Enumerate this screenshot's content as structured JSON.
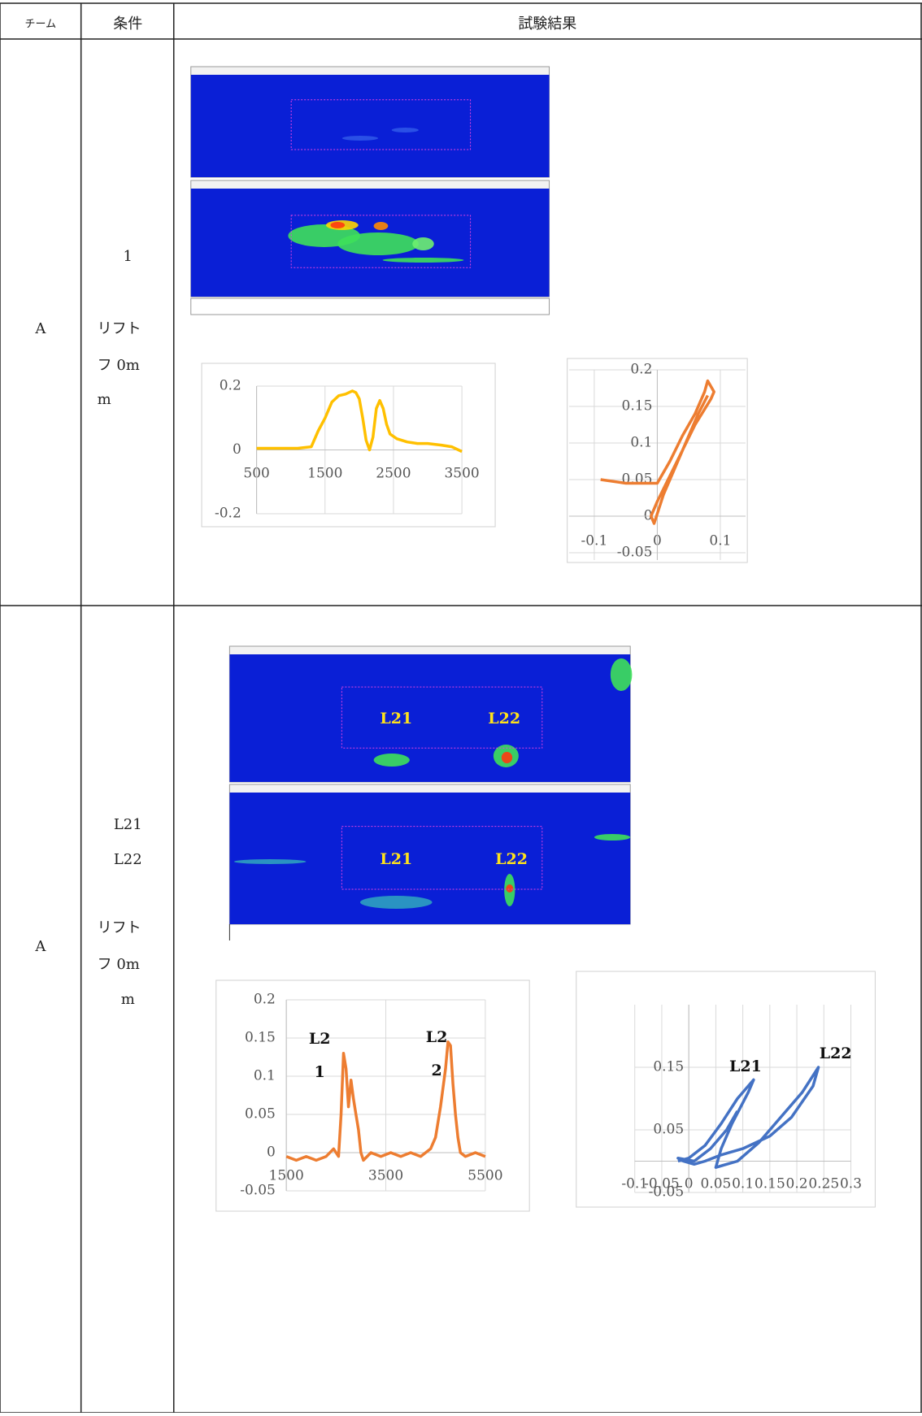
{
  "table": {
    "header": [
      "チーム",
      "条件",
      "試験結果"
    ],
    "rows": [
      {
        "team": "A",
        "condition": [
          "1",
          "リフト",
          "フ 0m",
          "m"
        ]
      },
      {
        "team": "A",
        "condition": [
          "L21",
          "L22",
          "リフト",
          "フ 0m",
          "m"
        ],
        "result": {
          "top_labels": [
            "L21",
            "L22"
          ],
          "bottom_labels": [
            "L21",
            "L22"
          ]
        }
      }
    ]
  },
  "chart_data": [
    {
      "type": "line",
      "color": "#ffc000",
      "x": [
        500,
        800,
        1100,
        1300,
        1400,
        1500,
        1600,
        1700,
        1800,
        1900,
        1950,
        2000,
        2050,
        2100,
        2150,
        2200,
        2250,
        2300,
        2350,
        2400,
        2450,
        2550,
        2700,
        2850,
        3000,
        3200,
        3350,
        3500
      ],
      "values": [
        0.005,
        0.005,
        0.005,
        0.01,
        0.06,
        0.1,
        0.15,
        0.17,
        0.175,
        0.185,
        0.18,
        0.16,
        0.1,
        0.03,
        0.0,
        0.04,
        0.13,
        0.155,
        0.13,
        0.08,
        0.05,
        0.035,
        0.025,
        0.02,
        0.02,
        0.015,
        0.01,
        -0.005
      ],
      "xlim": [
        500,
        3500
      ],
      "ylim": [
        -0.2,
        0.2
      ],
      "xticks": [
        500,
        1500,
        2500,
        3500
      ],
      "yticks": [
        -0.2,
        0,
        0.2
      ],
      "grid": true
    },
    {
      "type": "line",
      "color": "#ed7d31",
      "x": [
        -0.09,
        -0.05,
        -0.02,
        0,
        0.02,
        0.04,
        0.06,
        0.075,
        0.08,
        0.09,
        0.085,
        0.06,
        0.04,
        0.02,
        0,
        -0.01,
        -0.005,
        0.01,
        0.03,
        0.05,
        0.065,
        0.08
      ],
      "values": [
        0.05,
        0.045,
        0.045,
        0.045,
        0.075,
        0.11,
        0.14,
        0.17,
        0.185,
        0.17,
        0.16,
        0.125,
        0.09,
        0.055,
        0.02,
        0.0,
        -0.01,
        0.03,
        0.07,
        0.11,
        0.14,
        0.165
      ],
      "xlim": [
        -0.14,
        0.14
      ],
      "ylim": [
        -0.06,
        0.2
      ],
      "xticks": [
        -0.1,
        0,
        0.1
      ],
      "yticks": [
        -0.05,
        0,
        0.05,
        0.1,
        0.15,
        0.2
      ],
      "grid": true
    },
    {
      "type": "line",
      "color": "#ed7d31",
      "x": [
        1500,
        1700,
        1900,
        2100,
        2300,
        2450,
        2550,
        2600,
        2650,
        2700,
        2750,
        2800,
        2850,
        2900,
        2950,
        3000,
        3050,
        3200,
        3400,
        3600,
        3800,
        4000,
        4200,
        4400,
        4500,
        4600,
        4700,
        4750,
        4800,
        4850,
        4900,
        4950,
        5000,
        5100,
        5300,
        5500
      ],
      "values": [
        -0.005,
        -0.01,
        -0.005,
        -0.01,
        -0.005,
        0.005,
        -0.005,
        0.05,
        0.13,
        0.11,
        0.06,
        0.095,
        0.07,
        0.05,
        0.03,
        0.0,
        -0.01,
        0.0,
        -0.005,
        0.0,
        -0.005,
        0.0,
        -0.005,
        0.005,
        0.02,
        0.06,
        0.11,
        0.145,
        0.14,
        0.09,
        0.05,
        0.02,
        0.0,
        -0.005,
        0.0,
        -0.005
      ],
      "xlim": [
        1500,
        5500
      ],
      "ylim": [
        -0.05,
        0.2
      ],
      "xticks": [
        1500,
        3500,
        5500
      ],
      "yticks": [
        -0.05,
        0,
        0.05,
        0.1,
        0.15,
        0.2
      ],
      "grid": true,
      "annotations": [
        "L2",
        "1",
        "L2",
        "2"
      ]
    },
    {
      "type": "line",
      "color": "#4472c4",
      "x": [
        -0.02,
        0,
        0.03,
        0.06,
        0.09,
        0.12,
        0.11,
        0.08,
        0.06,
        0.05,
        0.07,
        0.09,
        0.13,
        0.17,
        0.21,
        0.24,
        0.23,
        0.19,
        0.15,
        0.1,
        0.06,
        0.03,
        0.01,
        -0.01,
        -0.02,
        0.01,
        0.04,
        0.07,
        0.09
      ],
      "values": [
        0.0,
        0.005,
        0.025,
        0.06,
        0.1,
        0.13,
        0.11,
        0.06,
        0.02,
        -0.01,
        -0.005,
        0.0,
        0.03,
        0.07,
        0.11,
        0.15,
        0.12,
        0.07,
        0.04,
        0.02,
        0.01,
        0.0,
        -0.005,
        0.0,
        0.005,
        0.0,
        0.02,
        0.05,
        0.08
      ],
      "xlim": [
        -0.1,
        0.3
      ],
      "ylim": [
        -0.05,
        0.25
      ],
      "xticks": [
        -0.1,
        -0.05,
        0,
        0.05,
        0.1,
        0.15,
        0.2,
        0.25,
        0.3
      ],
      "yticks": [
        -0.05,
        0.05,
        0.15
      ],
      "grid": true,
      "annotations": [
        "L21",
        "L22"
      ]
    }
  ]
}
